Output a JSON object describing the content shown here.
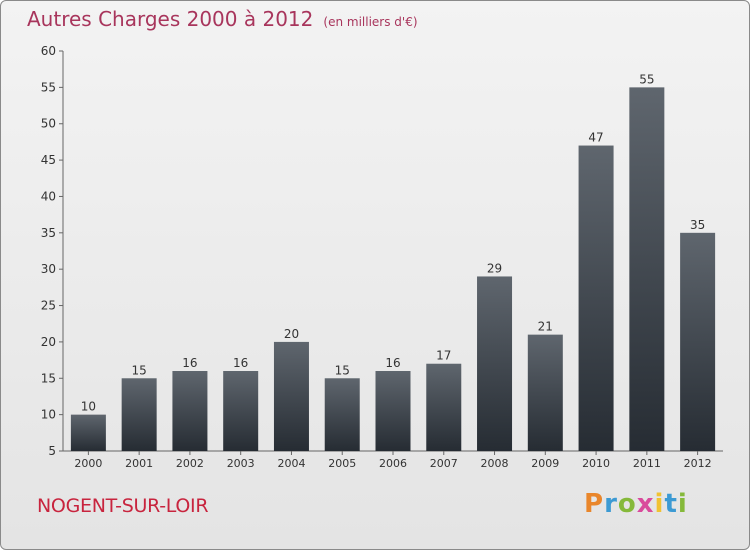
{
  "header": {
    "title": "Autres Charges 2000 à 2012",
    "subtitle": "(en milliers d'€)"
  },
  "footer": {
    "town": "NOGENT-SUR-LOIR",
    "brand_letters": [
      "P",
      "r",
      "o",
      "x",
      "i",
      "t",
      "i"
    ]
  },
  "chart_data": {
    "type": "bar",
    "title": "Autres Charges 2000 à 2012",
    "subtitle": "(en milliers d'€)",
    "categories": [
      "2000",
      "2001",
      "2002",
      "2003",
      "2004",
      "2005",
      "2006",
      "2007",
      "2008",
      "2009",
      "2010",
      "2011",
      "2012"
    ],
    "values": [
      10,
      15,
      16,
      16,
      20,
      15,
      16,
      17,
      29,
      21,
      47,
      55,
      35
    ],
    "ylim": [
      5,
      60
    ],
    "yticks": [
      5,
      10,
      15,
      20,
      25,
      30,
      35,
      40,
      45,
      50,
      55,
      60
    ],
    "grid": false,
    "legend": "none",
    "colors": {
      "bar_top": "#5f666e",
      "bar_bottom": "#262c33",
      "axis": "#666666",
      "label": "#333333"
    }
  }
}
